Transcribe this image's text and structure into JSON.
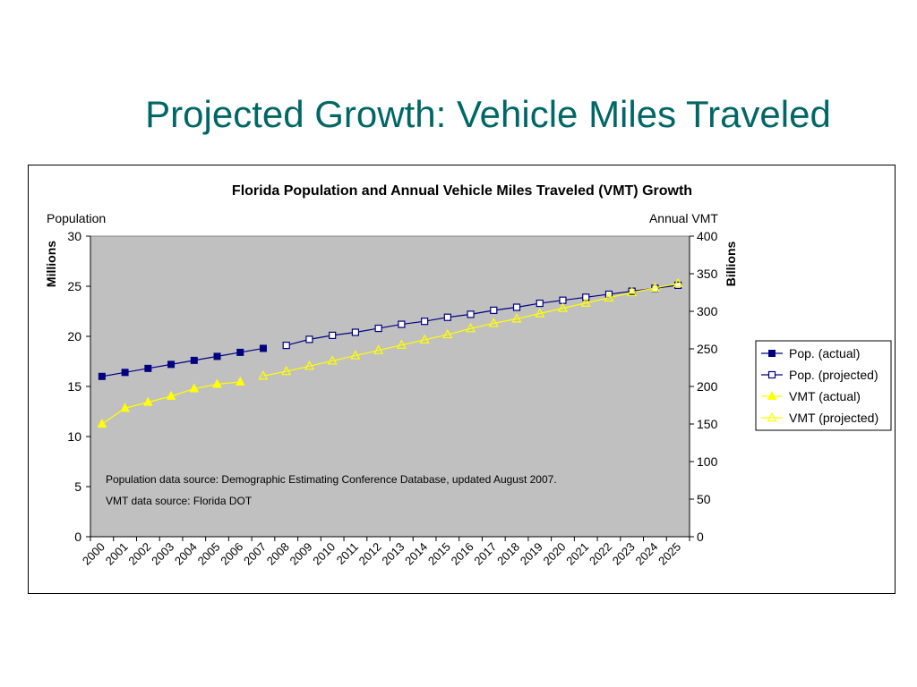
{
  "slide": {
    "title": "Projected Growth: Vehicle Miles Traveled"
  },
  "chart_data": {
    "type": "line",
    "title": "Florida Population and Annual Vehicle Miles Traveled (VMT) Growth",
    "categories": [
      "2000",
      "2001",
      "2002",
      "2003",
      "2004",
      "2005",
      "2006",
      "2007",
      "2008",
      "2009",
      "2010",
      "2011",
      "2012",
      "2013",
      "2014",
      "2015",
      "2016",
      "2017",
      "2018",
      "2019",
      "2020",
      "2021",
      "2022",
      "2023",
      "2024",
      "2025"
    ],
    "y_left": {
      "label_top": "Population",
      "label_side": "Millions",
      "ylim": [
        0,
        30
      ],
      "ticks": [
        0,
        5,
        10,
        15,
        20,
        25,
        30
      ]
    },
    "y_right": {
      "label_top": "Annual VMT",
      "label_side": "Billions",
      "ylim": [
        0,
        400
      ],
      "ticks": [
        0,
        50,
        100,
        150,
        200,
        250,
        300,
        350,
        400
      ]
    },
    "grid": false,
    "legend_position": "right",
    "series": [
      {
        "name": "Pop. (actual)",
        "axis": "left",
        "marker": "square-filled",
        "color": "#000080",
        "values": [
          16.0,
          16.4,
          16.8,
          17.2,
          17.6,
          18.0,
          18.4,
          18.8,
          null,
          null,
          null,
          null,
          null,
          null,
          null,
          null,
          null,
          null,
          null,
          null,
          null,
          null,
          null,
          null,
          null,
          null
        ]
      },
      {
        "name": "Pop. (projected)",
        "axis": "left",
        "marker": "square-open",
        "color": "#000080",
        "values": [
          null,
          null,
          null,
          null,
          null,
          null,
          null,
          null,
          19.1,
          19.7,
          20.1,
          20.4,
          20.8,
          21.2,
          21.5,
          21.9,
          22.2,
          22.6,
          22.9,
          23.3,
          23.6,
          23.9,
          24.2,
          24.5,
          24.8,
          25.1
        ]
      },
      {
        "name": "VMT (actual)",
        "axis": "right",
        "marker": "triangle-filled",
        "color": "#ffff00",
        "values": [
          150,
          171,
          179,
          187,
          197,
          203,
          206,
          null,
          null,
          null,
          null,
          null,
          null,
          null,
          null,
          null,
          null,
          null,
          null,
          null,
          null,
          null,
          null,
          null,
          null,
          null
        ]
      },
      {
        "name": "VMT (projected)",
        "axis": "right",
        "marker": "triangle-open",
        "color": "#ffff00",
        "values": [
          null,
          null,
          null,
          null,
          null,
          null,
          null,
          214,
          220,
          227,
          234,
          241,
          248,
          255,
          262,
          269,
          277,
          284,
          290,
          297,
          304,
          311,
          318,
          325,
          331,
          337
        ]
      }
    ],
    "annotations": [
      "Population data source: Demographic Estimating Conference Database, updated August 2007.",
      "VMT data source: Florida DOT"
    ]
  }
}
